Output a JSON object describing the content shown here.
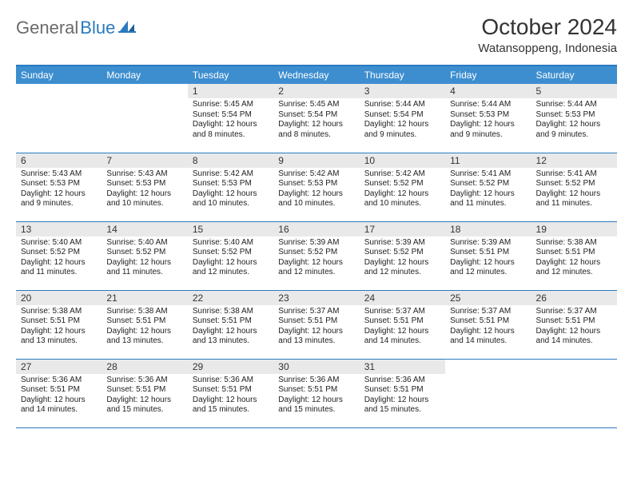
{
  "brand": {
    "name_gray": "General",
    "name_blue": "Blue"
  },
  "title": "October 2024",
  "location": "Watansoppeng, Indonesia",
  "colors": {
    "header_bg": "#3d8ecf",
    "border": "#2a7ac0",
    "daynum_bg": "#e9e9e9",
    "text": "#222222",
    "logo_gray": "#6a6a6a"
  },
  "day_names": [
    "Sunday",
    "Monday",
    "Tuesday",
    "Wednesday",
    "Thursday",
    "Friday",
    "Saturday"
  ],
  "weeks": [
    [
      null,
      null,
      {
        "n": "1",
        "sr": "5:45 AM",
        "ss": "5:54 PM",
        "dl": "12 hours and 8 minutes."
      },
      {
        "n": "2",
        "sr": "5:45 AM",
        "ss": "5:54 PM",
        "dl": "12 hours and 8 minutes."
      },
      {
        "n": "3",
        "sr": "5:44 AM",
        "ss": "5:54 PM",
        "dl": "12 hours and 9 minutes."
      },
      {
        "n": "4",
        "sr": "5:44 AM",
        "ss": "5:53 PM",
        "dl": "12 hours and 9 minutes."
      },
      {
        "n": "5",
        "sr": "5:44 AM",
        "ss": "5:53 PM",
        "dl": "12 hours and 9 minutes."
      }
    ],
    [
      {
        "n": "6",
        "sr": "5:43 AM",
        "ss": "5:53 PM",
        "dl": "12 hours and 9 minutes."
      },
      {
        "n": "7",
        "sr": "5:43 AM",
        "ss": "5:53 PM",
        "dl": "12 hours and 10 minutes."
      },
      {
        "n": "8",
        "sr": "5:42 AM",
        "ss": "5:53 PM",
        "dl": "12 hours and 10 minutes."
      },
      {
        "n": "9",
        "sr": "5:42 AM",
        "ss": "5:53 PM",
        "dl": "12 hours and 10 minutes."
      },
      {
        "n": "10",
        "sr": "5:42 AM",
        "ss": "5:52 PM",
        "dl": "12 hours and 10 minutes."
      },
      {
        "n": "11",
        "sr": "5:41 AM",
        "ss": "5:52 PM",
        "dl": "12 hours and 11 minutes."
      },
      {
        "n": "12",
        "sr": "5:41 AM",
        "ss": "5:52 PM",
        "dl": "12 hours and 11 minutes."
      }
    ],
    [
      {
        "n": "13",
        "sr": "5:40 AM",
        "ss": "5:52 PM",
        "dl": "12 hours and 11 minutes."
      },
      {
        "n": "14",
        "sr": "5:40 AM",
        "ss": "5:52 PM",
        "dl": "12 hours and 11 minutes."
      },
      {
        "n": "15",
        "sr": "5:40 AM",
        "ss": "5:52 PM",
        "dl": "12 hours and 12 minutes."
      },
      {
        "n": "16",
        "sr": "5:39 AM",
        "ss": "5:52 PM",
        "dl": "12 hours and 12 minutes."
      },
      {
        "n": "17",
        "sr": "5:39 AM",
        "ss": "5:52 PM",
        "dl": "12 hours and 12 minutes."
      },
      {
        "n": "18",
        "sr": "5:39 AM",
        "ss": "5:51 PM",
        "dl": "12 hours and 12 minutes."
      },
      {
        "n": "19",
        "sr": "5:38 AM",
        "ss": "5:51 PM",
        "dl": "12 hours and 12 minutes."
      }
    ],
    [
      {
        "n": "20",
        "sr": "5:38 AM",
        "ss": "5:51 PM",
        "dl": "12 hours and 13 minutes."
      },
      {
        "n": "21",
        "sr": "5:38 AM",
        "ss": "5:51 PM",
        "dl": "12 hours and 13 minutes."
      },
      {
        "n": "22",
        "sr": "5:38 AM",
        "ss": "5:51 PM",
        "dl": "12 hours and 13 minutes."
      },
      {
        "n": "23",
        "sr": "5:37 AM",
        "ss": "5:51 PM",
        "dl": "12 hours and 13 minutes."
      },
      {
        "n": "24",
        "sr": "5:37 AM",
        "ss": "5:51 PM",
        "dl": "12 hours and 14 minutes."
      },
      {
        "n": "25",
        "sr": "5:37 AM",
        "ss": "5:51 PM",
        "dl": "12 hours and 14 minutes."
      },
      {
        "n": "26",
        "sr": "5:37 AM",
        "ss": "5:51 PM",
        "dl": "12 hours and 14 minutes."
      }
    ],
    [
      {
        "n": "27",
        "sr": "5:36 AM",
        "ss": "5:51 PM",
        "dl": "12 hours and 14 minutes."
      },
      {
        "n": "28",
        "sr": "5:36 AM",
        "ss": "5:51 PM",
        "dl": "12 hours and 15 minutes."
      },
      {
        "n": "29",
        "sr": "5:36 AM",
        "ss": "5:51 PM",
        "dl": "12 hours and 15 minutes."
      },
      {
        "n": "30",
        "sr": "5:36 AM",
        "ss": "5:51 PM",
        "dl": "12 hours and 15 minutes."
      },
      {
        "n": "31",
        "sr": "5:36 AM",
        "ss": "5:51 PM",
        "dl": "12 hours and 15 minutes."
      },
      null,
      null
    ]
  ],
  "labels": {
    "sunrise": "Sunrise:",
    "sunset": "Sunset:",
    "daylight": "Daylight:"
  }
}
